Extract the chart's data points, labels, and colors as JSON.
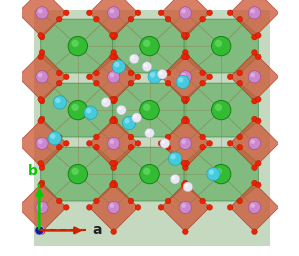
{
  "figsize": [
    2.99,
    2.56
  ],
  "dpi": 100,
  "bg_color": "#f0f0f0",
  "image_bg": "#c8dcc8",
  "arrow_color_b": "#00cc00",
  "arrow_color_a": "#cc2200",
  "label_a": "a",
  "label_b": "b",
  "label_fontsize": 10,
  "dot_color": "#1a1a8c",
  "green_poly_color": "#78b878",
  "green_poly_edge": "#4a8a4a",
  "red_poly_color": "#cc5533",
  "red_poly_edge": "#aa2211",
  "bond_color": "#887744",
  "O_color": "#ee2200",
  "O_edge": "#aa1100",
  "La_color": "#33bb33",
  "La_edge": "#117711",
  "Ta_color": "#cc88cc",
  "Ta_edge": "#994499",
  "Li_cyan_color": "#44ccdd",
  "Li_cyan_edge": "#2299aa",
  "Li_white_color": "#e8e8f0",
  "Li_white_edge": "#aaaacc",
  "O_r": 0.011,
  "La_r": 0.038,
  "Ta_r": 0.024,
  "Li_cyan_r": 0.026,
  "Li_white_r": 0.019
}
